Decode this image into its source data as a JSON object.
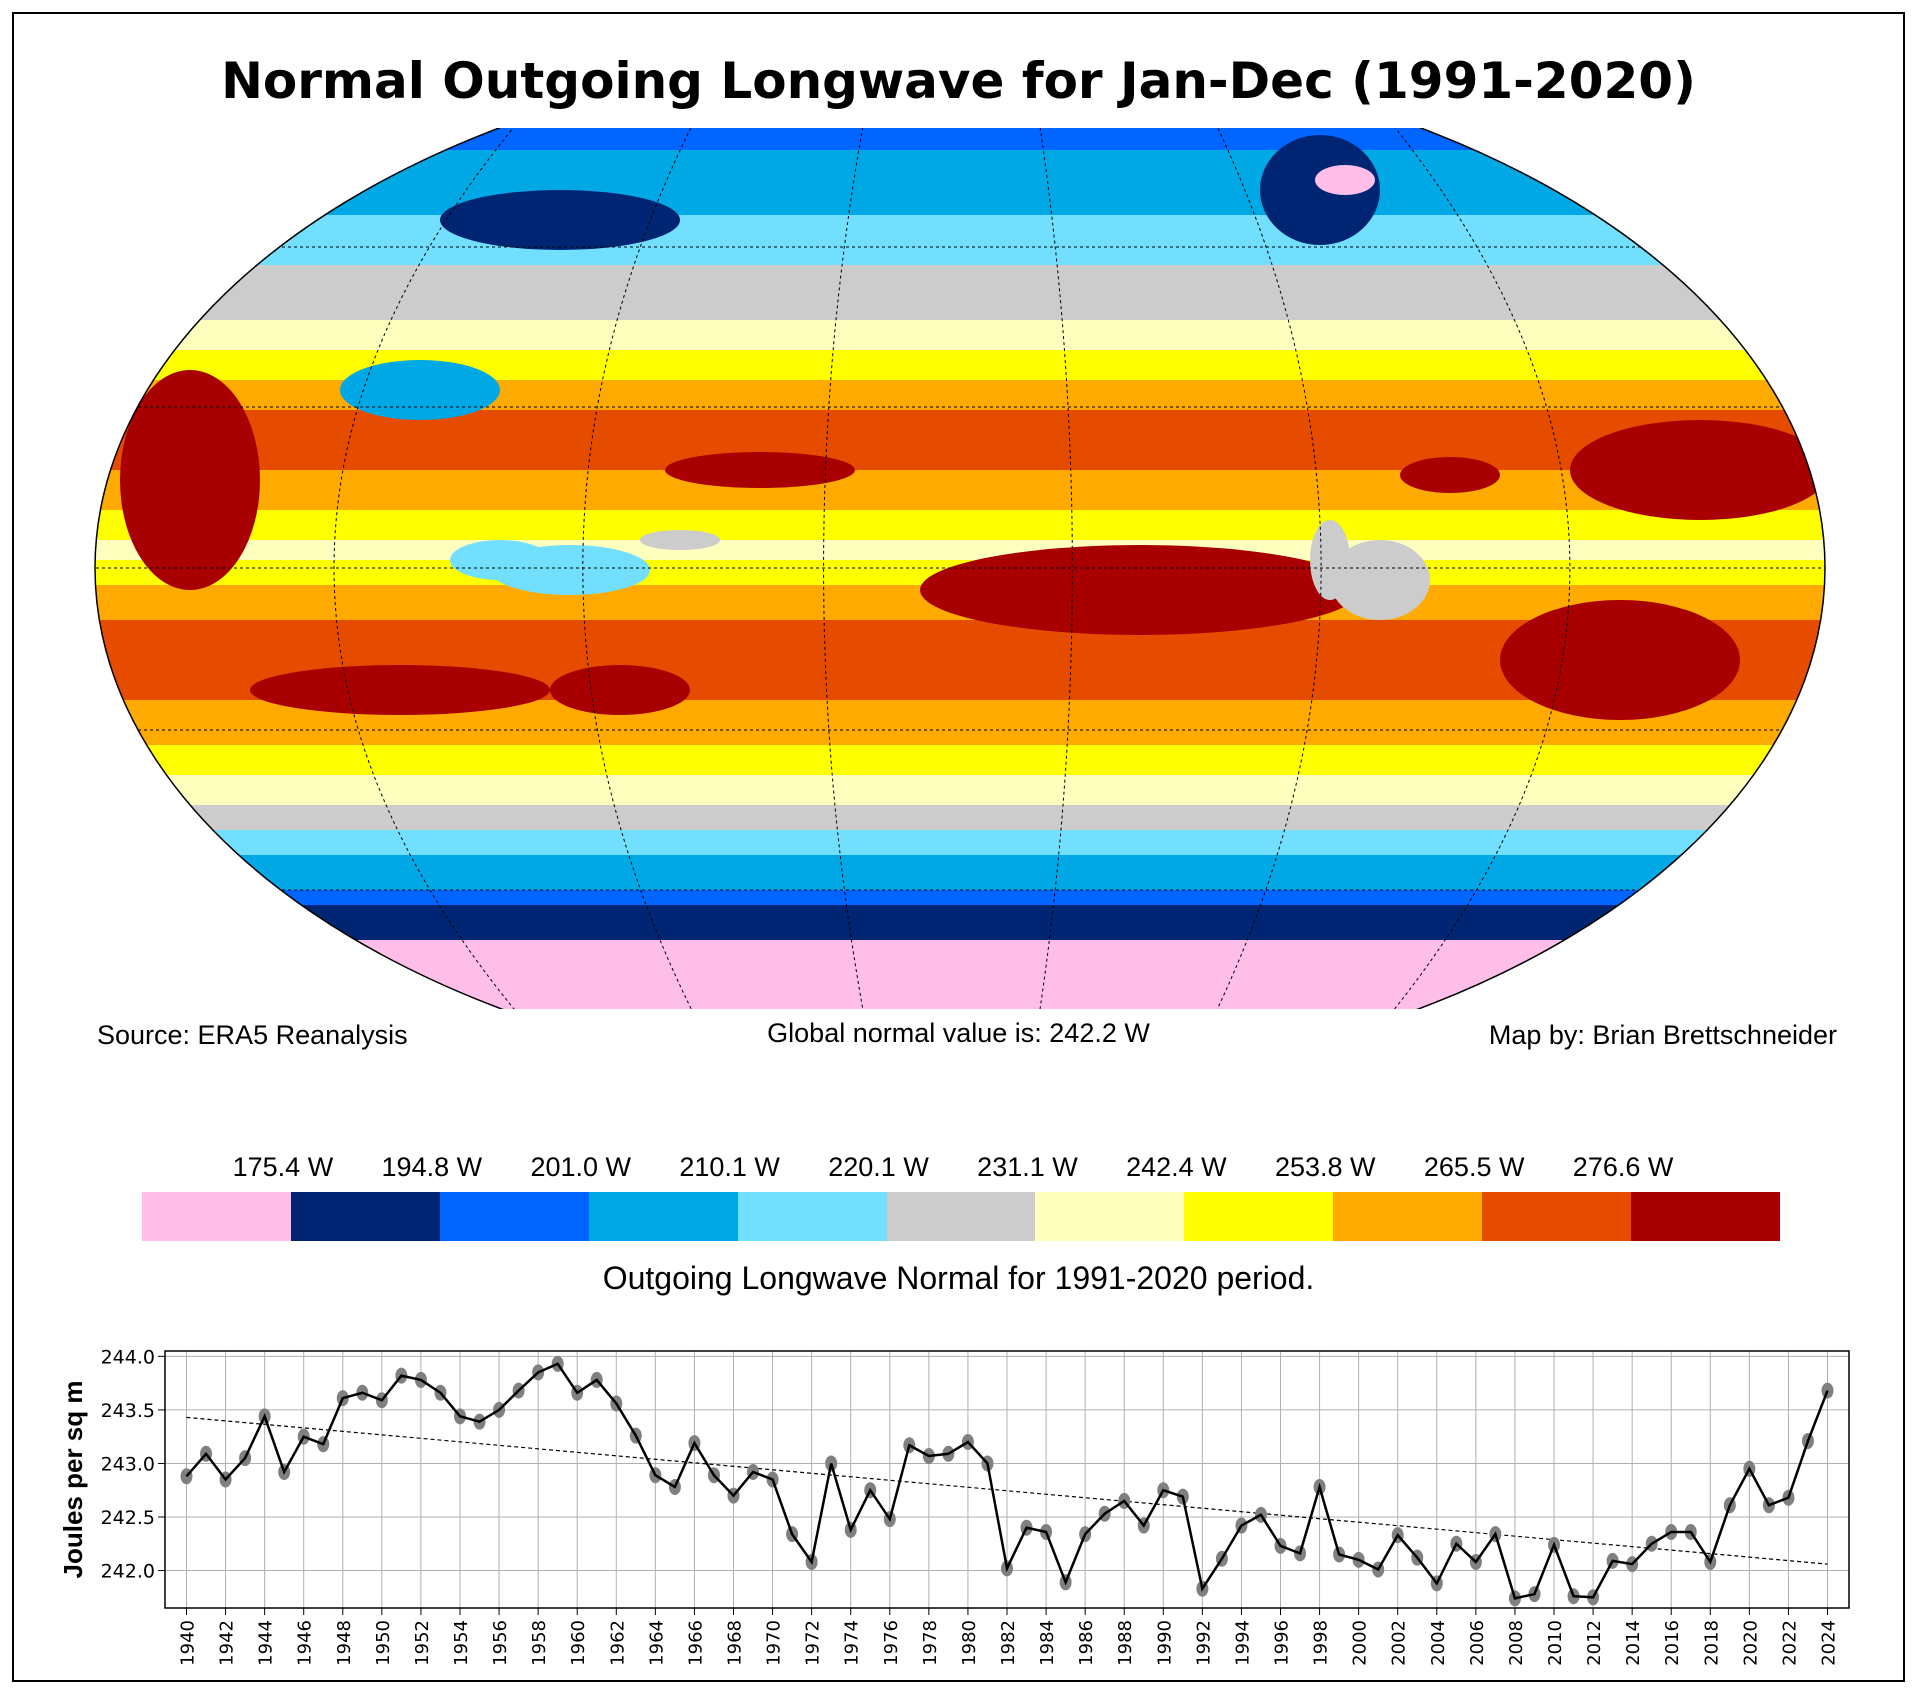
{
  "title": "Normal Outgoing Longwave for Jan-Dec (1991-2020)",
  "footer": {
    "source": "Source: ERA5 Reanalysis",
    "global_value": "Global normal value is: 242.2 W",
    "credit": "Map by: Brian Brettschneider"
  },
  "colorbar": {
    "colors": [
      "#ffbee8",
      "#002673",
      "#0066ff",
      "#00a8e6",
      "#73dfff",
      "#cccccc",
      "#ffffbe",
      "#ffff00",
      "#ffaa00",
      "#e64c00",
      "#a80000"
    ],
    "labels": [
      "175.4 W",
      "194.8 W",
      "201.0 W",
      "210.1 W",
      "220.1 W",
      "231.1 W",
      "242.4 W",
      "253.8 W",
      "265.5 W",
      "276.6 W"
    ],
    "caption": "Outgoing Longwave Normal for 1991-2020 period."
  },
  "chart_data": {
    "type": "line",
    "ylabel": "Joules per sq m",
    "xlabel": "",
    "ylim": [
      241.65,
      244.05
    ],
    "yticks": [
      "242.0",
      "242.5",
      "243.0",
      "243.5",
      "244.0"
    ],
    "ytick_values": [
      242.0,
      242.5,
      243.0,
      243.5,
      244.0
    ],
    "x": [
      1940,
      1941,
      1942,
      1943,
      1944,
      1945,
      1946,
      1947,
      1948,
      1949,
      1950,
      1951,
      1952,
      1953,
      1954,
      1955,
      1956,
      1957,
      1958,
      1959,
      1960,
      1961,
      1962,
      1963,
      1964,
      1965,
      1966,
      1967,
      1968,
      1969,
      1970,
      1971,
      1972,
      1973,
      1974,
      1975,
      1976,
      1977,
      1978,
      1979,
      1980,
      1981,
      1982,
      1983,
      1984,
      1985,
      1986,
      1987,
      1988,
      1989,
      1990,
      1991,
      1992,
      1993,
      1994,
      1995,
      1996,
      1997,
      1998,
      1999,
      2000,
      2001,
      2002,
      2003,
      2004,
      2005,
      2006,
      2007,
      2008,
      2009,
      2010,
      2011,
      2012,
      2013,
      2014,
      2015,
      2016,
      2017,
      2018,
      2019,
      2020,
      2021,
      2022,
      2023,
      2024
    ],
    "values": [
      242.88,
      243.09,
      242.85,
      243.05,
      243.44,
      242.92,
      243.25,
      243.18,
      243.61,
      243.66,
      243.59,
      243.82,
      243.78,
      243.66,
      243.44,
      243.39,
      243.5,
      243.68,
      243.85,
      243.93,
      243.66,
      243.78,
      243.56,
      243.26,
      242.89,
      242.78,
      243.19,
      242.89,
      242.7,
      242.92,
      242.85,
      242.34,
      242.08,
      243.0,
      242.38,
      242.75,
      242.48,
      243.17,
      243.07,
      243.09,
      243.2,
      243.0,
      242.02,
      242.4,
      242.36,
      241.89,
      242.34,
      242.53,
      242.65,
      242.42,
      242.75,
      242.69,
      241.83,
      242.11,
      242.42,
      242.52,
      242.23,
      242.16,
      242.78,
      242.15,
      242.1,
      242.01,
      242.33,
      242.12,
      241.88,
      242.25,
      242.08,
      242.34,
      241.74,
      241.78,
      242.24,
      241.76,
      241.75,
      242.09,
      242.06,
      242.25,
      242.36,
      242.36,
      242.08,
      242.61,
      242.95,
      242.61,
      242.68,
      243.21,
      243.68
    ],
    "trend": {
      "start": [
        1940,
        243.43
      ],
      "end": [
        2024,
        242.06
      ]
    },
    "xticks": [
      "1940",
      "1942",
      "1944",
      "1946",
      "1948",
      "1950",
      "1952",
      "1954",
      "1956",
      "1958",
      "1960",
      "1962",
      "1964",
      "1966",
      "1968",
      "1970",
      "1972",
      "1974",
      "1976",
      "1978",
      "1980",
      "1982",
      "1984",
      "1986",
      "1988",
      "1990",
      "1992",
      "1994",
      "1996",
      "1998",
      "2000",
      "2002",
      "2004",
      "2006",
      "2008",
      "2010",
      "2012",
      "2014",
      "2016",
      "2018",
      "2020",
      "2022",
      "2024"
    ],
    "grid": true,
    "line_color": "#000000",
    "marker_color": "#808080"
  }
}
